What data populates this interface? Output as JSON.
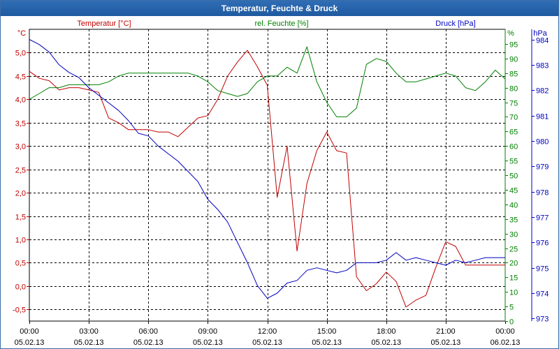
{
  "window": {
    "title": "Temperatur, Feuchte & Druck"
  },
  "colors": {
    "temperature": "#c00000",
    "humidity": "#008000",
    "pressure": "#0000c0",
    "grid": "#000000"
  },
  "chart_data": {
    "type": "line",
    "title": "Temperatur, Feuchte & Druck",
    "grid": true,
    "x": {
      "range_hours": [
        0,
        24
      ],
      "tick_hours": [
        0,
        3,
        6,
        9,
        12,
        15,
        18,
        21,
        24
      ],
      "tick_times": [
        "00:00",
        "03:00",
        "06:00",
        "09:00",
        "12:00",
        "15:00",
        "18:00",
        "21:00",
        "00:00"
      ],
      "tick_dates": [
        "05.02.13",
        "05.02.13",
        "05.02.13",
        "05.02.13",
        "05.02.13",
        "05.02.13",
        "05.02.13",
        "05.02.13",
        "06.02.13"
      ]
    },
    "axes": {
      "temperature": {
        "unit": "°C",
        "label": "Temperatur [°C]",
        "range": [
          -0.75,
          5.5
        ],
        "ticks": [
          5.0,
          4.5,
          4.0,
          3.5,
          3.0,
          2.5,
          2.0,
          1.5,
          1.0,
          0.5,
          0.0,
          -0.5
        ],
        "tick_labels": [
          "5,0",
          "4,5",
          "4,0",
          "3,5",
          "3,0",
          "2,5",
          "2,0",
          "1,5",
          "1,0",
          "0,5",
          "0,0",
          "-0,5"
        ]
      },
      "humidity": {
        "unit": "%",
        "label": "rel. Feuchte [%]",
        "range": [
          0,
          100
        ],
        "ticks": [
          95,
          90,
          85,
          80,
          75,
          70,
          65,
          60,
          55,
          50,
          45,
          40,
          35,
          30,
          25,
          20,
          15,
          10,
          5,
          0
        ],
        "tick_labels": [
          "95",
          "90",
          "85",
          "80",
          "75",
          "70",
          "65",
          "60",
          "55",
          "50",
          "45",
          "40",
          "35",
          "30",
          "25",
          "20",
          "15",
          "10",
          "5",
          "0"
        ]
      },
      "pressure": {
        "unit": "hPa",
        "label": "Druck [hPa]",
        "range": [
          972.9,
          984.4
        ],
        "ticks": [
          984,
          983,
          982,
          981,
          980,
          979,
          978,
          977,
          976,
          975,
          974,
          973
        ],
        "tick_labels": [
          "984",
          "983",
          "982",
          "981",
          "980",
          "979",
          "978",
          "977",
          "976",
          "975",
          "974",
          "973"
        ]
      }
    },
    "series": [
      {
        "name": "Temperatur [°C]",
        "axis": "temperature",
        "x": [
          0,
          0.5,
          1,
          1.5,
          2,
          2.5,
          3,
          3.5,
          4,
          4.5,
          5,
          5.5,
          6,
          6.5,
          7,
          7.5,
          8,
          8.5,
          9,
          9.5,
          10,
          10.5,
          11,
          11.5,
          12,
          12.5,
          13,
          13.5,
          14,
          14.5,
          15,
          15.5,
          16,
          16.5,
          17,
          17.5,
          18,
          18.5,
          19,
          19.5,
          20,
          20.5,
          21,
          21.5,
          22,
          22.5,
          23,
          23.5,
          24
        ],
        "y": [
          4.6,
          4.45,
          4.4,
          4.2,
          4.25,
          4.25,
          4.2,
          4.15,
          3.6,
          3.5,
          3.35,
          3.35,
          3.35,
          3.3,
          3.3,
          3.2,
          3.4,
          3.6,
          3.65,
          4.0,
          4.5,
          4.8,
          5.05,
          4.7,
          4.3,
          1.9,
          3.0,
          0.75,
          2.2,
          2.9,
          3.3,
          2.9,
          2.85,
          0.2,
          -0.1,
          0.05,
          0.3,
          0.1,
          -0.45,
          -0.3,
          -0.2,
          0.4,
          0.95,
          0.85,
          0.45,
          0.45,
          0.45,
          0.45,
          0.45
        ]
      },
      {
        "name": "rel. Feuchte [%]",
        "axis": "humidity",
        "x": [
          0,
          0.5,
          1,
          1.5,
          2,
          2.5,
          3,
          3.5,
          4,
          4.5,
          5,
          5.5,
          6,
          6.5,
          7,
          7.5,
          8,
          8.5,
          9,
          9.5,
          10,
          10.5,
          11,
          11.5,
          12,
          12.5,
          13,
          13.5,
          14,
          14.5,
          15,
          15.5,
          16,
          16.5,
          17,
          17.5,
          18,
          18.5,
          19,
          19.5,
          20,
          20.5,
          21,
          21.5,
          22,
          22.5,
          23,
          23.5,
          24
        ],
        "y": [
          76,
          78,
          80,
          80,
          81,
          81,
          81,
          81,
          82,
          84,
          85,
          85,
          85,
          85,
          85,
          85,
          85,
          84,
          82,
          79,
          78,
          77,
          78,
          82,
          84,
          84,
          87,
          85,
          94,
          82,
          75,
          70,
          70,
          73,
          88,
          90,
          89,
          85,
          82,
          82,
          83,
          84,
          85,
          84,
          80,
          79,
          82,
          86,
          83
        ]
      },
      {
        "name": "Druck [hPa]",
        "axis": "pressure",
        "x": [
          0,
          0.5,
          1,
          1.5,
          2,
          2.5,
          3,
          3.5,
          4,
          4.5,
          5,
          5.5,
          6,
          6.5,
          7,
          7.5,
          8,
          8.5,
          9,
          9.5,
          10,
          10.5,
          11,
          11.5,
          12,
          12.5,
          13,
          13.5,
          14,
          14.5,
          15,
          15.5,
          16,
          16.5,
          17,
          17.5,
          18,
          18.5,
          19,
          19.5,
          20,
          20.5,
          21,
          21.5,
          22,
          22.5,
          23,
          23.5,
          24
        ],
        "y": [
          984.0,
          983.8,
          983.5,
          983.0,
          982.7,
          982.5,
          982.1,
          981.8,
          981.5,
          981.2,
          980.8,
          980.3,
          980.2,
          979.8,
          979.5,
          979.2,
          978.8,
          978.4,
          977.7,
          977.3,
          976.8,
          976.0,
          975.2,
          974.3,
          973.8,
          974.0,
          974.4,
          974.5,
          974.9,
          975.0,
          974.9,
          974.8,
          974.9,
          975.2,
          975.2,
          975.2,
          975.3,
          975.6,
          975.3,
          975.4,
          975.3,
          975.2,
          975.1,
          975.3,
          975.2,
          975.3,
          975.4,
          975.4,
          975.4
        ]
      }
    ]
  }
}
